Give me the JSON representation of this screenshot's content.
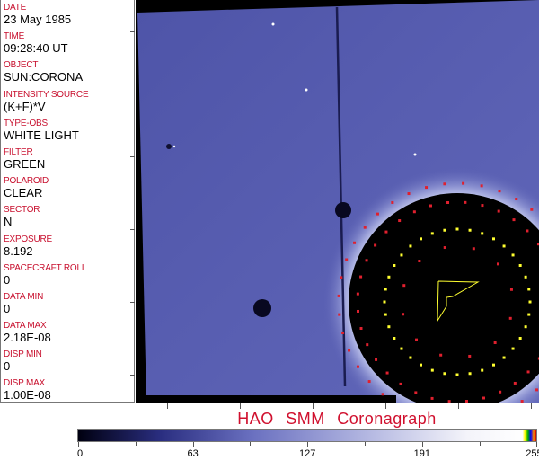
{
  "fields": [
    {
      "label": "DATE",
      "value": "23 May 1985"
    },
    {
      "label": "TIME",
      "value": "09:28:40 UT"
    },
    {
      "label": "OBJECT",
      "value": "SUN:CORONA"
    },
    {
      "label": "INTENSITY SOURCE",
      "value": "(K+F)*V"
    },
    {
      "label": "TYPE-OBS",
      "value": "WHITE LIGHT"
    },
    {
      "label": "FILTER",
      "value": "GREEN"
    },
    {
      "label": "POLAROID",
      "value": "CLEAR"
    },
    {
      "label": "SECTOR",
      "value": "N"
    },
    {
      "label": "EXPOSURE",
      "value": "8.192"
    },
    {
      "label": "SPACECRAFT ROLL",
      "value": "0"
    },
    {
      "label": "DATA MIN",
      "value": "0"
    },
    {
      "label": "DATA MAX",
      "value": "2.18E-08"
    },
    {
      "label": "DISP MIN",
      "value": "0"
    },
    {
      "label": "DISP MAX",
      "value": "1.00E-08"
    }
  ],
  "title": "HAO SMM Coronagraph",
  "colorbar": {
    "ticks": [
      "0",
      "63",
      "127",
      "191",
      "255"
    ],
    "range": [
      0,
      255
    ]
  },
  "colors": {
    "label": "#c8102e",
    "image": "#5a60b4",
    "overlay_red": "#e0202e",
    "overlay_yellow": "#ffff30"
  }
}
